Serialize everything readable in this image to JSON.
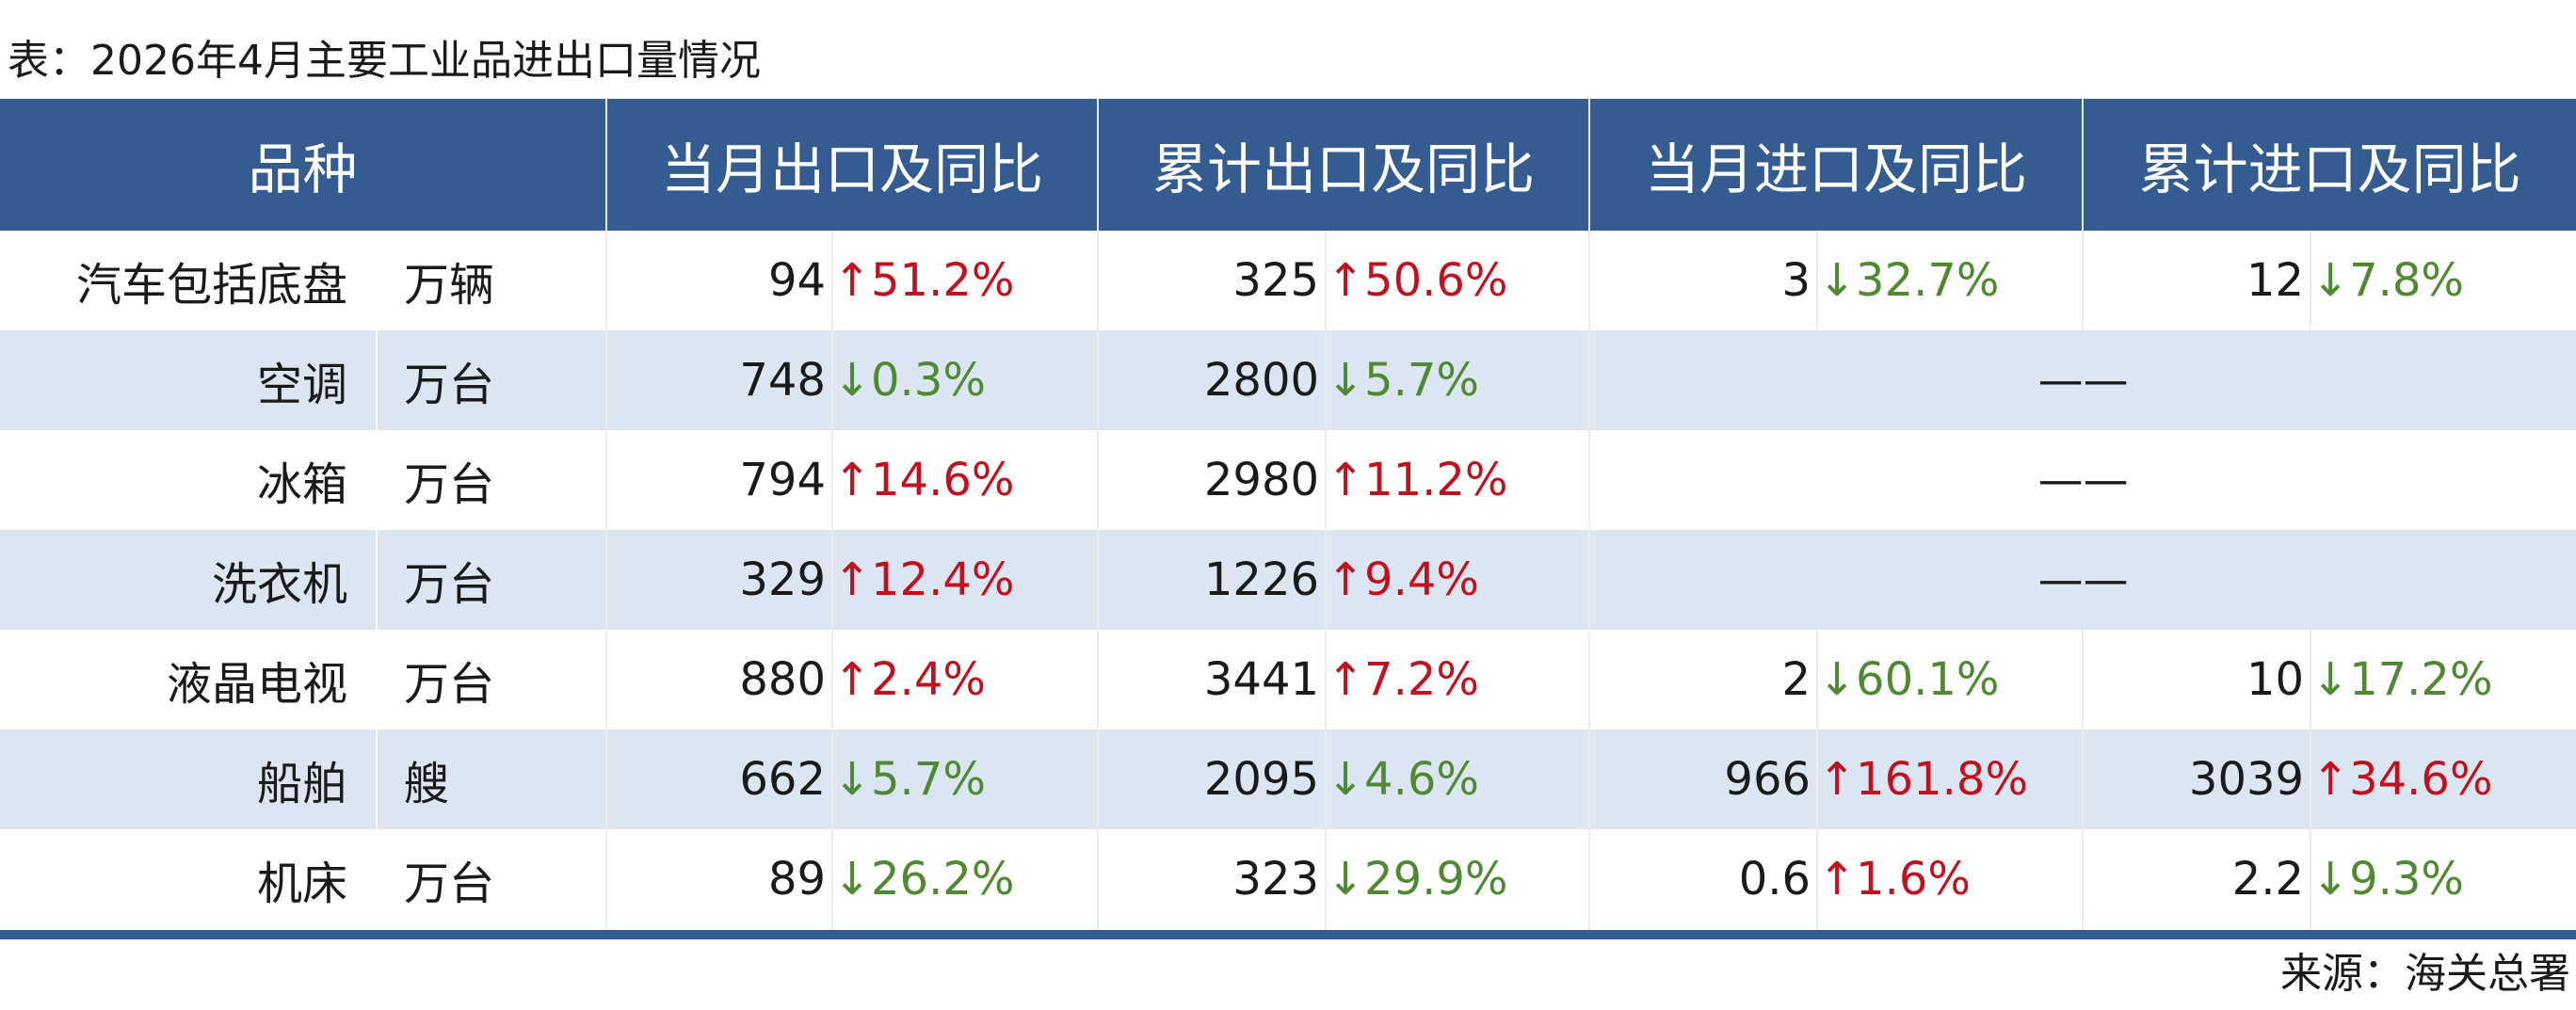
{
  "caption": "表：2026年4月主要工业品进出口量情况",
  "headers": [
    "品种",
    "当月出口及同比",
    "累计出口及同比",
    "当月进口及同比",
    "累计进口及同比"
  ],
  "rows": [
    {
      "name": "汽车包括底盘",
      "unit": "万辆",
      "m_exp": "94",
      "m_exp_arrow": "↑",
      "m_exp_pct": "51.2%",
      "c_exp": "325",
      "c_exp_arrow": "↑",
      "c_exp_pct": "50.6%",
      "m_imp": "3",
      "m_imp_arrow": "↓",
      "m_imp_pct": "32.7%",
      "c_imp": "12",
      "c_imp_arrow": "↓",
      "c_imp_pct": "7.8%"
    },
    {
      "name": "空调",
      "unit": "万台",
      "m_exp": "748",
      "m_exp_arrow": "↓",
      "m_exp_pct": "0.3%",
      "c_exp": "2800",
      "c_exp_arrow": "↓",
      "c_exp_pct": "5.7%",
      "import_na": "——"
    },
    {
      "name": "冰箱",
      "unit": "万台",
      "m_exp": "794",
      "m_exp_arrow": "↑",
      "m_exp_pct": "14.6%",
      "c_exp": "2980",
      "c_exp_arrow": "↑",
      "c_exp_pct": "11.2%",
      "import_na": "——"
    },
    {
      "name": "洗衣机",
      "unit": "万台",
      "m_exp": "329",
      "m_exp_arrow": "↑",
      "m_exp_pct": "12.4%",
      "c_exp": "1226",
      "c_exp_arrow": "↑",
      "c_exp_pct": "9.4%",
      "import_na": "——"
    },
    {
      "name": "液晶电视",
      "unit": "万台",
      "m_exp": "880",
      "m_exp_arrow": "↑",
      "m_exp_pct": "2.4%",
      "c_exp": "3441",
      "c_exp_arrow": "↑",
      "c_exp_pct": "7.2%",
      "m_imp": "2",
      "m_imp_arrow": "↓",
      "m_imp_pct": "60.1%",
      "c_imp": "10",
      "c_imp_arrow": "↓",
      "c_imp_pct": "17.2%"
    },
    {
      "name": "船舶",
      "unit": "艘",
      "m_exp": "662",
      "m_exp_arrow": "↓",
      "m_exp_pct": "5.7%",
      "c_exp": "2095",
      "c_exp_arrow": "↓",
      "c_exp_pct": "4.6%",
      "m_imp": "966",
      "m_imp_arrow": "↑",
      "m_imp_pct": "161.8%",
      "c_imp": "3039",
      "c_imp_arrow": "↑",
      "c_imp_pct": "34.6%"
    },
    {
      "name": "机床",
      "unit": "万台",
      "m_exp": "89",
      "m_exp_arrow": "↓",
      "m_exp_pct": "26.2%",
      "c_exp": "323",
      "c_exp_arrow": "↓",
      "c_exp_pct": "29.9%",
      "m_imp": "0.6",
      "m_imp_arrow": "↑",
      "m_imp_pct": "1.6%",
      "c_imp": "2.2",
      "c_imp_arrow": "↓",
      "c_imp_pct": "9.3%"
    }
  ],
  "colors": {
    "header_bg": "#345c91",
    "alt_row_bg": "#dce6f2",
    "up": "#c0111f",
    "down": "#4f8a32"
  },
  "source": "来源：海关总署"
}
